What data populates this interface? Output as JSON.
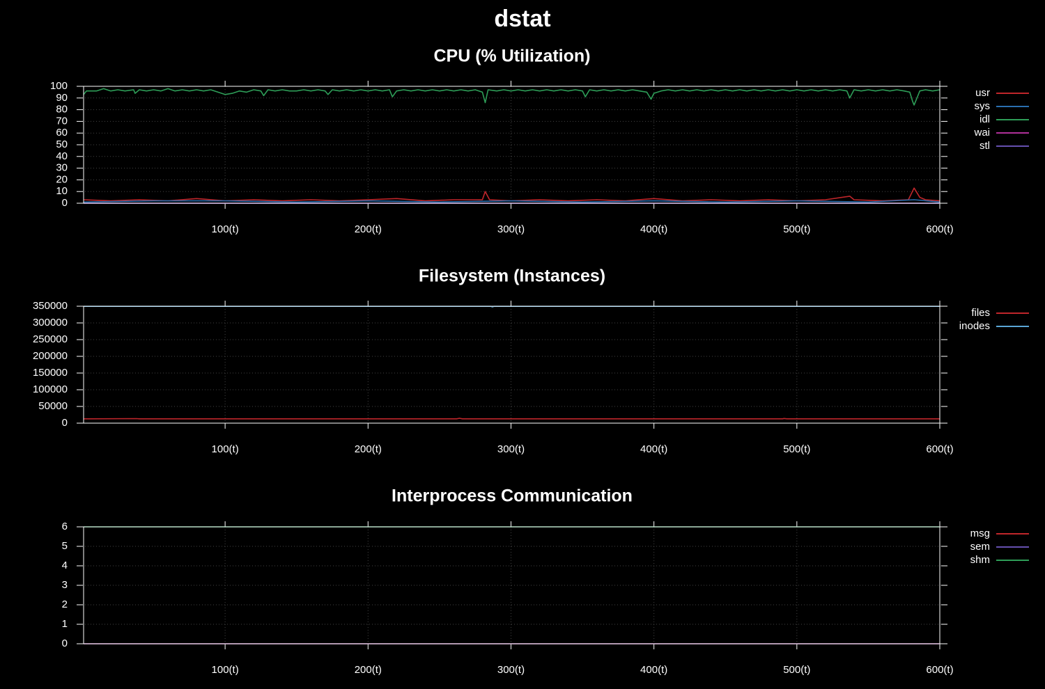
{
  "title": "dstat",
  "colors": {
    "background": "#000000",
    "axis": "#ffffff",
    "grid": "#444444",
    "red": "#c0262b",
    "blue": "#2a6fb0",
    "green": "#2e9e58",
    "magenta": "#b0309a",
    "purple": "#6650b0",
    "lightblue": "#5aa6d6"
  },
  "chart_data": [
    {
      "type": "line",
      "title": "CPU (% Utilization)",
      "xlim": [
        1,
        600
      ],
      "xticks": [
        100,
        200,
        300,
        400,
        500,
        600
      ],
      "xtick_labels": [
        "100(t)",
        "200(t)",
        "300(t)",
        "400(t)",
        "500(t)",
        "600(t)"
      ],
      "ylim": [
        0,
        100
      ],
      "yticks": [
        0,
        10,
        20,
        30,
        40,
        50,
        60,
        70,
        80,
        90,
        100
      ],
      "ytick_labels": [
        "0",
        "10",
        "20",
        "30",
        "40",
        "50",
        "60",
        "70",
        "80",
        "90",
        "100"
      ],
      "grid": true,
      "legend_position": "right",
      "series": [
        {
          "name": "usr",
          "color": "#c0262b",
          "points": [
            [
              1,
              3
            ],
            [
              20,
              2
            ],
            [
              40,
              3
            ],
            [
              60,
              2
            ],
            [
              80,
              4
            ],
            [
              100,
              2
            ],
            [
              120,
              3
            ],
            [
              140,
              2
            ],
            [
              160,
              3
            ],
            [
              180,
              2
            ],
            [
              200,
              3
            ],
            [
              220,
              4
            ],
            [
              240,
              2
            ],
            [
              260,
              3
            ],
            [
              280,
              3
            ],
            [
              282,
              10
            ],
            [
              285,
              3
            ],
            [
              300,
              2
            ],
            [
              320,
              3
            ],
            [
              340,
              2
            ],
            [
              360,
              3
            ],
            [
              380,
              2
            ],
            [
              400,
              4
            ],
            [
              420,
              2
            ],
            [
              440,
              3
            ],
            [
              460,
              2
            ],
            [
              480,
              3
            ],
            [
              500,
              2
            ],
            [
              520,
              3
            ],
            [
              537,
              6
            ],
            [
              540,
              3
            ],
            [
              560,
              2
            ],
            [
              578,
              3
            ],
            [
              582,
              13
            ],
            [
              586,
              5
            ],
            [
              590,
              3
            ],
            [
              600,
              2
            ]
          ]
        },
        {
          "name": "sys",
          "color": "#2a6fb0",
          "points": [
            [
              1,
              1
            ],
            [
              50,
              2
            ],
            [
              100,
              2
            ],
            [
              150,
              1
            ],
            [
              200,
              2
            ],
            [
              250,
              1
            ],
            [
              300,
              2
            ],
            [
              350,
              1
            ],
            [
              400,
              2
            ],
            [
              450,
              1
            ],
            [
              500,
              2
            ],
            [
              550,
              1
            ],
            [
              582,
              3
            ],
            [
              600,
              1
            ]
          ]
        },
        {
          "name": "idl",
          "color": "#2e9e58",
          "points": [
            [
              1,
              93
            ],
            [
              3,
              96
            ],
            [
              10,
              96
            ],
            [
              15,
              98
            ],
            [
              20,
              96
            ],
            [
              25,
              97
            ],
            [
              30,
              96
            ],
            [
              36,
              97
            ],
            [
              37,
              94
            ],
            [
              40,
              97
            ],
            [
              45,
              96
            ],
            [
              50,
              97
            ],
            [
              55,
              96
            ],
            [
              60,
              98
            ],
            [
              65,
              96
            ],
            [
              70,
              97
            ],
            [
              75,
              96
            ],
            [
              80,
              97
            ],
            [
              85,
              96
            ],
            [
              90,
              97
            ],
            [
              95,
              95
            ],
            [
              100,
              93
            ],
            [
              105,
              94
            ],
            [
              110,
              96
            ],
            [
              115,
              95
            ],
            [
              120,
              97
            ],
            [
              125,
              96
            ],
            [
              127,
              92
            ],
            [
              130,
              97
            ],
            [
              135,
              96
            ],
            [
              140,
              97
            ],
            [
              145,
              96
            ],
            [
              150,
              96
            ],
            [
              155,
              97
            ],
            [
              160,
              96
            ],
            [
              165,
              97
            ],
            [
              170,
              96
            ],
            [
              172,
              93
            ],
            [
              175,
              97
            ],
            [
              180,
              96
            ],
            [
              185,
              97
            ],
            [
              190,
              96
            ],
            [
              195,
              97
            ],
            [
              200,
              96
            ],
            [
              205,
              97
            ],
            [
              210,
              96
            ],
            [
              215,
              97
            ],
            [
              217,
              91
            ],
            [
              220,
              96
            ],
            [
              225,
              97
            ],
            [
              230,
              96
            ],
            [
              235,
              97
            ],
            [
              240,
              96
            ],
            [
              245,
              97
            ],
            [
              250,
              96
            ],
            [
              255,
              97
            ],
            [
              260,
              96
            ],
            [
              265,
              97
            ],
            [
              270,
              96
            ],
            [
              275,
              97
            ],
            [
              280,
              95
            ],
            [
              282,
              86
            ],
            [
              284,
              97
            ],
            [
              290,
              96
            ],
            [
              295,
              97
            ],
            [
              300,
              96
            ],
            [
              305,
              97
            ],
            [
              310,
              96
            ],
            [
              315,
              97
            ],
            [
              320,
              96
            ],
            [
              325,
              97
            ],
            [
              330,
              96
            ],
            [
              335,
              97
            ],
            [
              340,
              96
            ],
            [
              345,
              97
            ],
            [
              350,
              96
            ],
            [
              352,
              91
            ],
            [
              355,
              97
            ],
            [
              360,
              96
            ],
            [
              365,
              97
            ],
            [
              370,
              96
            ],
            [
              375,
              97
            ],
            [
              380,
              96
            ],
            [
              385,
              97
            ],
            [
              390,
              96
            ],
            [
              395,
              95
            ],
            [
              398,
              89
            ],
            [
              400,
              94
            ],
            [
              405,
              96
            ],
            [
              410,
              97
            ],
            [
              415,
              96
            ],
            [
              420,
              97
            ],
            [
              425,
              96
            ],
            [
              430,
              97
            ],
            [
              435,
              96
            ],
            [
              440,
              97
            ],
            [
              445,
              96
            ],
            [
              450,
              97
            ],
            [
              455,
              96
            ],
            [
              460,
              97
            ],
            [
              465,
              96
            ],
            [
              470,
              97
            ],
            [
              475,
              96
            ],
            [
              480,
              97
            ],
            [
              485,
              96
            ],
            [
              490,
              97
            ],
            [
              495,
              96
            ],
            [
              500,
              97
            ],
            [
              505,
              96
            ],
            [
              510,
              97
            ],
            [
              515,
              96
            ],
            [
              520,
              97
            ],
            [
              525,
              96
            ],
            [
              530,
              97
            ],
            [
              535,
              96
            ],
            [
              537,
              90
            ],
            [
              540,
              97
            ],
            [
              545,
              96
            ],
            [
              550,
              97
            ],
            [
              555,
              96
            ],
            [
              560,
              97
            ],
            [
              565,
              96
            ],
            [
              570,
              97
            ],
            [
              575,
              96
            ],
            [
              579,
              95
            ],
            [
              581,
              87
            ],
            [
              582,
              84
            ],
            [
              584,
              90
            ],
            [
              586,
              96
            ],
            [
              590,
              97
            ],
            [
              595,
              96
            ],
            [
              600,
              97
            ]
          ]
        },
        {
          "name": "wai",
          "color": "#b0309a",
          "points": [
            [
              1,
              0
            ],
            [
              600,
              0
            ]
          ]
        },
        {
          "name": "stl",
          "color": "#6650b0",
          "points": [
            [
              1,
              0
            ],
            [
              600,
              0
            ]
          ]
        }
      ]
    },
    {
      "type": "line",
      "title": "Filesystem (Instances)",
      "xlim": [
        1,
        600
      ],
      "xticks": [
        100,
        200,
        300,
        400,
        500,
        600
      ],
      "xtick_labels": [
        "100(t)",
        "200(t)",
        "300(t)",
        "400(t)",
        "500(t)",
        "600(t)"
      ],
      "ylim": [
        0,
        350000
      ],
      "yticks": [
        0,
        50000,
        100000,
        150000,
        200000,
        250000,
        300000,
        350000
      ],
      "ytick_labels": [
        "0",
        "50000",
        "100000",
        "150000",
        "200000",
        "250000",
        "300000",
        "350000"
      ],
      "grid": true,
      "legend_position": "right",
      "series": [
        {
          "name": "files",
          "color": "#c0262b",
          "points": [
            [
              1,
              13000
            ],
            [
              38,
              13500
            ],
            [
              40,
              13000
            ],
            [
              262,
              13000
            ],
            [
              264,
              14500
            ],
            [
              266,
              13000
            ],
            [
              490,
              13000
            ],
            [
              491,
              14000
            ],
            [
              493,
              13000
            ],
            [
              600,
              13000
            ]
          ]
        },
        {
          "name": "inodes",
          "color": "#5aa6d6",
          "points": [
            [
              1,
              349500
            ],
            [
              286,
              349500
            ],
            [
              287,
              348000
            ],
            [
              288,
              349500
            ],
            [
              600,
              349500
            ]
          ]
        }
      ]
    },
    {
      "type": "line",
      "title": "Interprocess Communication",
      "xlim": [
        1,
        600
      ],
      "xticks": [
        100,
        200,
        300,
        400,
        500,
        600
      ],
      "xtick_labels": [
        "100(t)",
        "200(t)",
        "300(t)",
        "400(t)",
        "500(t)",
        "600(t)"
      ],
      "ylim": [
        0,
        6
      ],
      "yticks": [
        0,
        1,
        2,
        3,
        4,
        5,
        6
      ],
      "ytick_labels": [
        "0",
        "1",
        "2",
        "3",
        "4",
        "5",
        "6"
      ],
      "grid": true,
      "legend_position": "right",
      "series": [
        {
          "name": "msg",
          "color": "#c0262b",
          "points": [
            [
              1,
              0
            ],
            [
              600,
              0
            ]
          ]
        },
        {
          "name": "sem",
          "color": "#6650b0",
          "points": [
            [
              1,
              0
            ],
            [
              600,
              0
            ]
          ]
        },
        {
          "name": "shm",
          "color": "#2e9e58",
          "points": [
            [
              1,
              6
            ],
            [
              600,
              6
            ]
          ]
        }
      ]
    }
  ]
}
